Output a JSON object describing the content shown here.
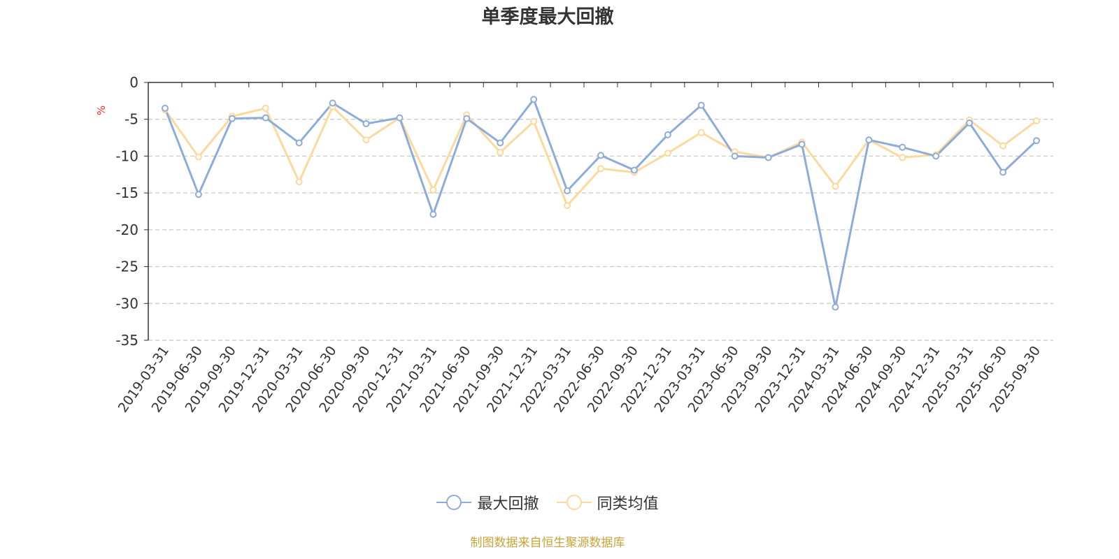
{
  "chart_data": {
    "type": "line",
    "title": "单季度最大回撤",
    "ylabel": "%",
    "ylim": [
      -35,
      0
    ],
    "yticks": [
      0,
      -5,
      -10,
      -15,
      -20,
      -25,
      -30,
      -35
    ],
    "grid": true,
    "legend_position": "bottom",
    "categories": [
      "2019-03-31",
      "2019-06-30",
      "2019-09-30",
      "2019-12-31",
      "2020-03-31",
      "2020-06-30",
      "2020-09-30",
      "2020-12-31",
      "2021-03-31",
      "2021-06-30",
      "2021-09-30",
      "2021-12-31",
      "2022-03-31",
      "2022-06-30",
      "2022-09-30",
      "2022-12-31",
      "2023-03-31",
      "2023-06-30",
      "2023-09-30",
      "2023-12-31",
      "2024-03-31",
      "2024-06-30",
      "2024-09-30",
      "2024-12-31",
      "2025-03-31",
      "2025-06-30",
      "2025-09-30"
    ],
    "series": [
      {
        "name": "最大回撤",
        "color": "#8eacd9",
        "values": [
          -3.5,
          -15.2,
          -4.9,
          -4.8,
          -8.2,
          -2.8,
          -5.6,
          -4.8,
          -17.9,
          -4.9,
          -8.2,
          -2.3,
          -14.7,
          -9.9,
          -11.9,
          -7.1,
          -3.1,
          -10.0,
          -10.2,
          -8.4,
          -30.5,
          -7.8,
          -8.8,
          -10.0,
          -5.5,
          -12.2,
          -7.9
        ]
      },
      {
        "name": "同类均值",
        "color": "#fcd99c",
        "values": [
          -3.7,
          -10.1,
          -4.6,
          -3.5,
          -13.5,
          -3.3,
          -7.8,
          -4.8,
          -14.6,
          -4.4,
          -9.5,
          -5.3,
          -16.7,
          -11.7,
          -12.2,
          -9.6,
          -6.8,
          -9.4,
          -10.2,
          -8.1,
          -14.1,
          -7.8,
          -10.2,
          -9.8,
          -5.1,
          -8.6,
          -5.2
        ]
      }
    ],
    "source": "制图数据来自恒生聚源数据库"
  }
}
